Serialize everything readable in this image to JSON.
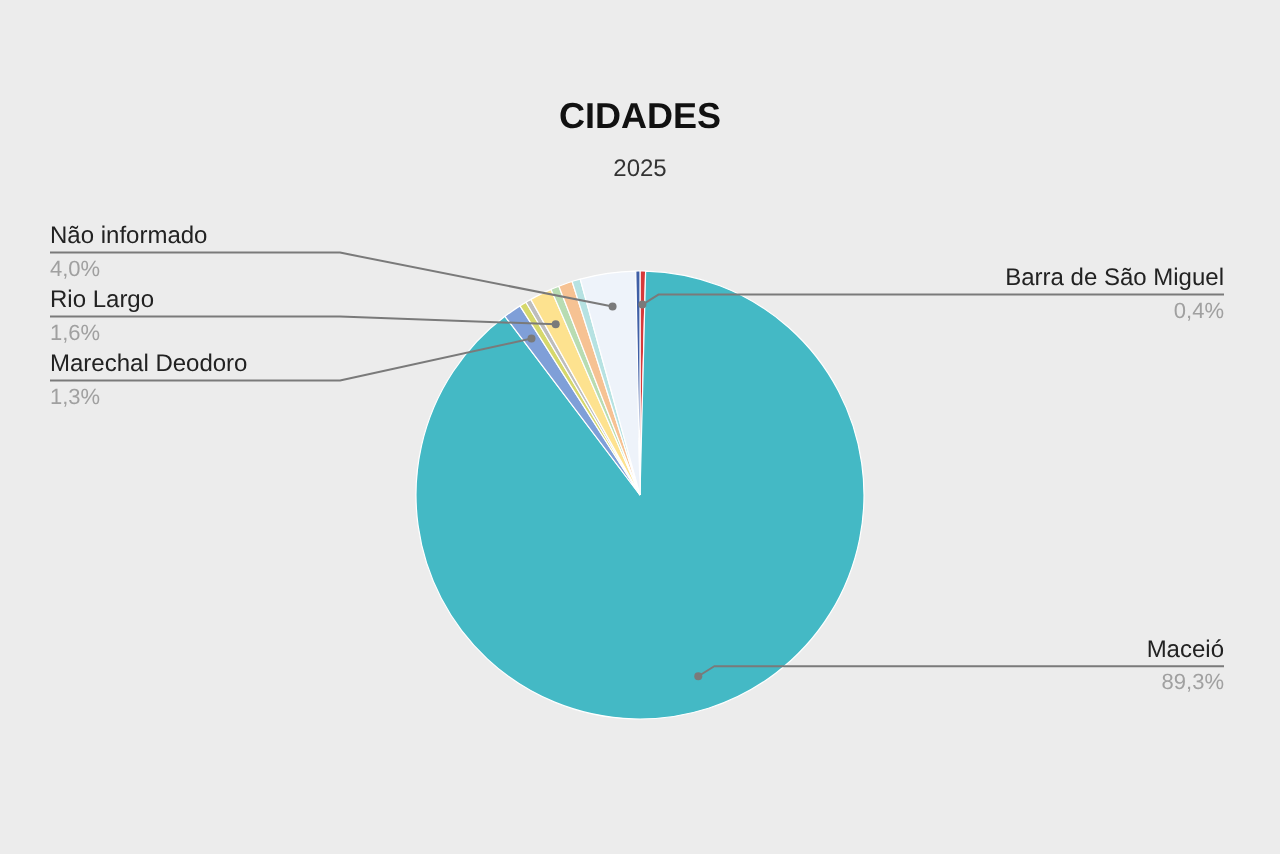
{
  "chart_data": {
    "type": "pie",
    "title": "CIDADES",
    "subtitle": "2025",
    "categories": [
      "Barra de São Miguel",
      "Maceió",
      "Marechal Deodoro",
      null,
      null,
      "Rio Largo",
      null,
      null,
      null,
      "Não informado",
      null
    ],
    "values": [
      0.4,
      89.3,
      1.3,
      0.5,
      0.4,
      1.6,
      0.6,
      1.0,
      0.6,
      4.0,
      0.3
    ],
    "value_labels": [
      "0,4%",
      "89,3%",
      "1,3%",
      null,
      null,
      "1,6%",
      null,
      null,
      null,
      "4,0%",
      null
    ],
    "colors": [
      "#d63a3a",
      "#44b9c5",
      "#7f9fd8",
      "#d6d86c",
      "#bdbdbd",
      "#fde28f",
      "#b8dcb2",
      "#f6c293",
      "#b6e2e2",
      "#eef3fa",
      "#3f5fa6"
    ],
    "legend": false
  }
}
